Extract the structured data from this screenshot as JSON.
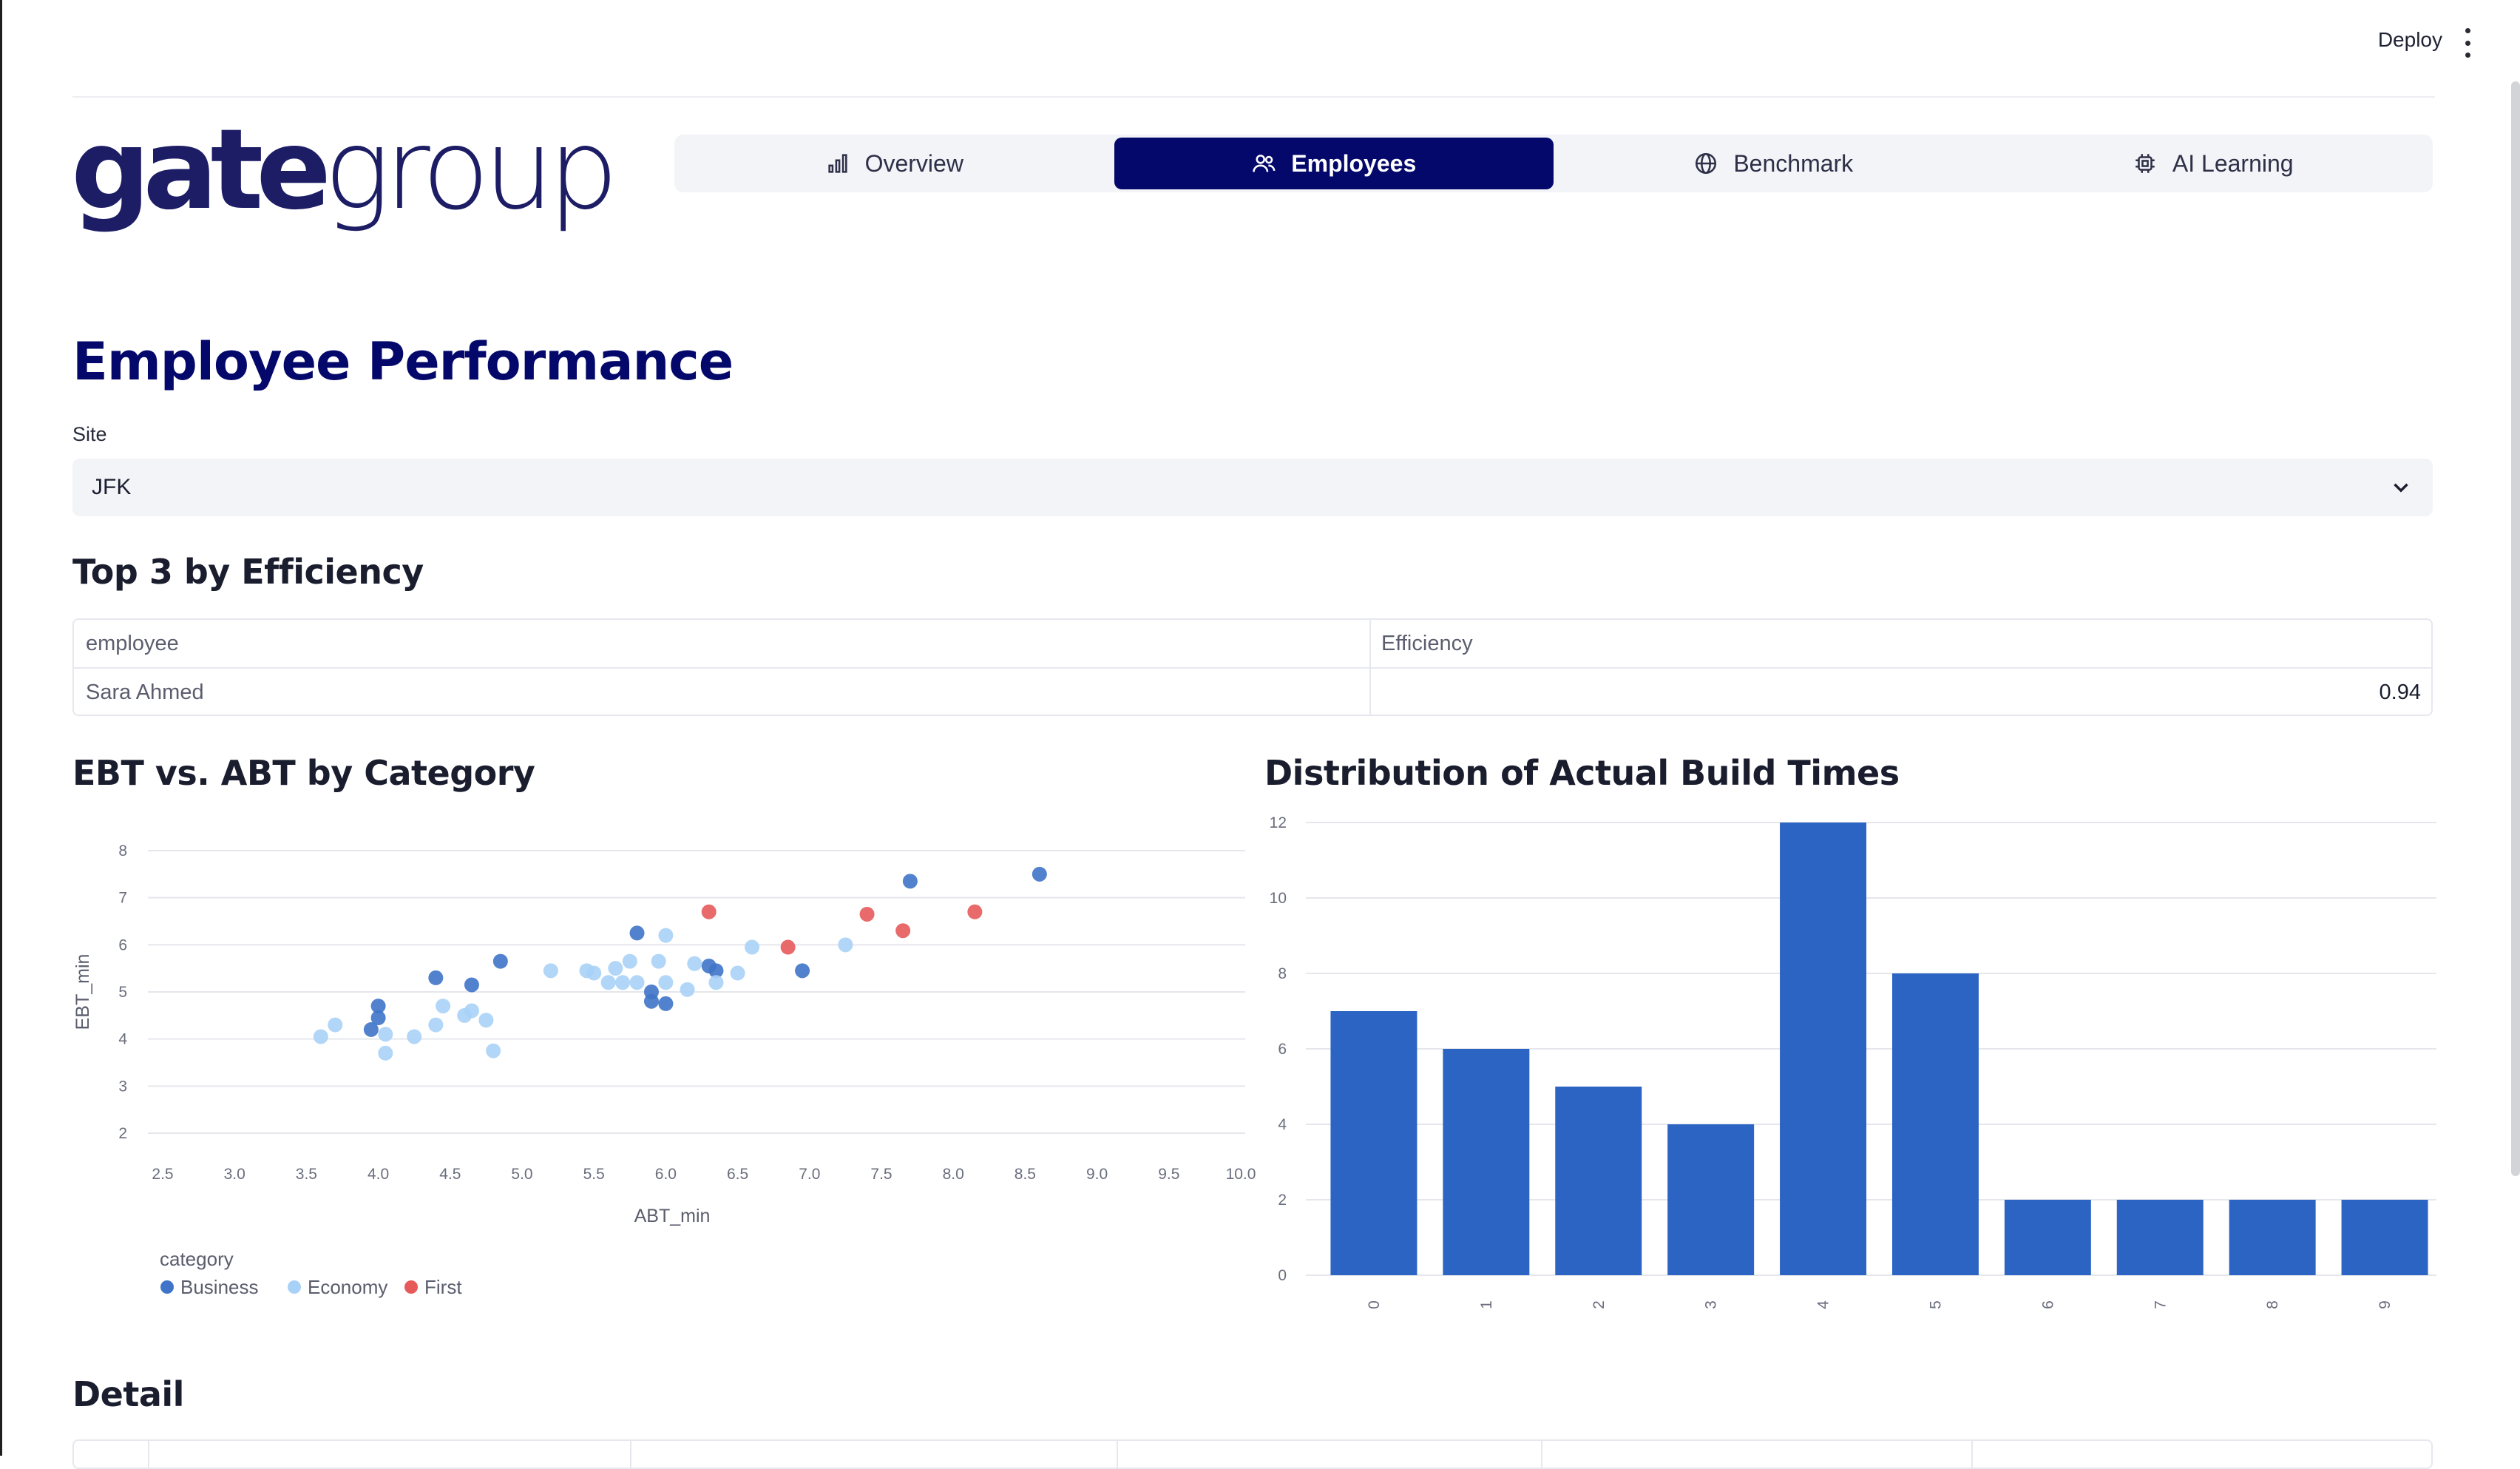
{
  "header": {
    "deploy_label": "Deploy",
    "logo_bold": "gate",
    "logo_light": "group"
  },
  "tabs": [
    {
      "label": "Overview",
      "icon": "bar-chart-icon",
      "active": false
    },
    {
      "label": "Employees",
      "icon": "users-icon",
      "active": true
    },
    {
      "label": "Benchmark",
      "icon": "globe-icon",
      "active": false
    },
    {
      "label": "AI Learning",
      "icon": "chip-icon",
      "active": false
    }
  ],
  "page": {
    "title": "Employee Performance",
    "site_label": "Site",
    "site_value": "JFK"
  },
  "top3": {
    "heading": "Top 3 by Efficiency",
    "columns": [
      "employee",
      "Efficiency"
    ],
    "rows": [
      [
        "Sara Ahmed",
        "0.94"
      ]
    ]
  },
  "detail": {
    "heading": "Detail"
  },
  "colors": {
    "brand_navy": "#04086b",
    "business": "#3f74c8",
    "economy": "#a8d1f7",
    "first": "#e65a5a",
    "bar": "#2c64c3"
  },
  "chart_data": [
    {
      "type": "scatter",
      "title": "EBT vs. ABT by Category",
      "xlabel": "ABT_min",
      "ylabel": "EBT_min",
      "xlim": [
        2.5,
        10.0
      ],
      "ylim": [
        2,
        8
      ],
      "x_ticks": [
        "2.5",
        "3.0",
        "3.5",
        "4.0",
        "4.5",
        "5.0",
        "5.5",
        "6.0",
        "6.5",
        "7.0",
        "7.5",
        "8.0",
        "8.5",
        "9.0",
        "9.5",
        "10.0"
      ],
      "y_ticks": [
        "2",
        "3",
        "4",
        "5",
        "6",
        "7",
        "8"
      ],
      "legend_title": "category",
      "legend_position": "bottom-left",
      "series": [
        {
          "name": "Business",
          "color": "#3f74c8",
          "points": [
            [
              4.0,
              4.7
            ],
            [
              4.0,
              4.45
            ],
            [
              3.95,
              4.2
            ],
            [
              4.4,
              5.3
            ],
            [
              4.65,
              5.15
            ],
            [
              4.85,
              5.65
            ],
            [
              5.8,
              6.25
            ],
            [
              5.9,
              4.8
            ],
            [
              5.9,
              5.0
            ],
            [
              6.0,
              4.75
            ],
            [
              6.3,
              5.55
            ],
            [
              6.35,
              5.45
            ],
            [
              6.95,
              5.45
            ],
            [
              7.7,
              7.35
            ],
            [
              8.6,
              7.5
            ]
          ]
        },
        {
          "name": "Economy",
          "color": "#a8d1f7",
          "points": [
            [
              3.6,
              4.05
            ],
            [
              3.7,
              4.3
            ],
            [
              4.05,
              4.1
            ],
            [
              4.05,
              3.7
            ],
            [
              4.25,
              4.05
            ],
            [
              4.4,
              4.3
            ],
            [
              4.45,
              4.7
            ],
            [
              4.6,
              4.5
            ],
            [
              4.65,
              4.6
            ],
            [
              4.75,
              4.4
            ],
            [
              4.8,
              3.75
            ],
            [
              5.2,
              5.45
            ],
            [
              5.45,
              5.45
            ],
            [
              5.5,
              5.4
            ],
            [
              5.6,
              5.2
            ],
            [
              5.65,
              5.5
            ],
            [
              5.7,
              5.2
            ],
            [
              5.75,
              5.65
            ],
            [
              5.8,
              5.2
            ],
            [
              5.95,
              5.65
            ],
            [
              6.0,
              6.2
            ],
            [
              6.0,
              5.2
            ],
            [
              6.15,
              5.05
            ],
            [
              6.2,
              5.6
            ],
            [
              6.35,
              5.2
            ],
            [
              6.5,
              5.4
            ],
            [
              6.6,
              5.95
            ],
            [
              7.25,
              6.0
            ]
          ]
        },
        {
          "name": "First",
          "color": "#e65a5a",
          "points": [
            [
              6.3,
              6.7
            ],
            [
              6.85,
              5.95
            ],
            [
              7.4,
              6.65
            ],
            [
              7.65,
              6.3
            ],
            [
              8.15,
              6.7
            ]
          ]
        }
      ]
    },
    {
      "type": "bar",
      "title": "Distribution of Actual Build Times",
      "categories": [
        "0",
        "1",
        "2",
        "3",
        "4",
        "5",
        "6",
        "7",
        "8",
        "9"
      ],
      "values": [
        7,
        6,
        5,
        4,
        12,
        8,
        2,
        2,
        2,
        2
      ],
      "ylim": [
        0,
        12
      ],
      "y_ticks": [
        "0",
        "2",
        "4",
        "6",
        "8",
        "10",
        "12"
      ],
      "color": "#2c64c3"
    }
  ]
}
